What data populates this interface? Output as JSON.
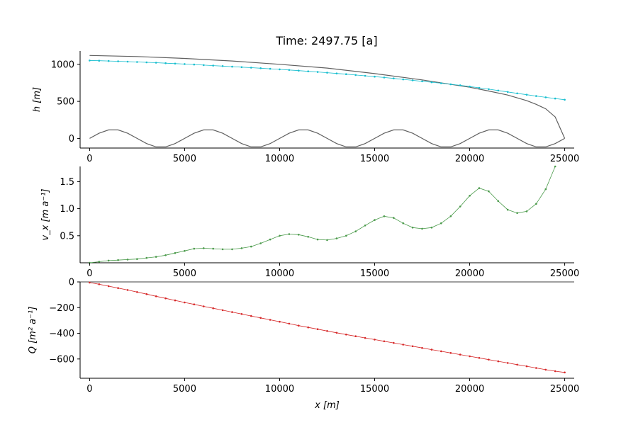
{
  "title": "Time: 2497.75 [a]",
  "chart_data": [
    {
      "type": "line",
      "ylabel": "h [m]",
      "xlim": [
        -500,
        25500
      ],
      "ylim": [
        -130,
        1180
      ],
      "xticks": [
        0,
        5000,
        10000,
        15000,
        20000,
        25000
      ],
      "xtick_labels": [
        "0",
        "5000",
        "10000",
        "15000",
        "20000",
        "25000"
      ],
      "yticks": [
        0,
        500,
        1000
      ],
      "ytick_labels": [
        "0",
        "500",
        "1000"
      ],
      "grid": false,
      "series": [
        {
          "role": "surface",
          "color": "#606060",
          "markers": false,
          "x": [
            0,
            2500,
            5000,
            7500,
            10000,
            12500,
            15000,
            17500,
            20000,
            21000,
            22000,
            23000,
            23500,
            24000,
            24500,
            25000
          ],
          "y": [
            1120,
            1105,
            1080,
            1045,
            1000,
            950,
            875,
            790,
            690,
            640,
            585,
            510,
            460,
            400,
            290,
            0
          ]
        },
        {
          "role": "bed",
          "color": "#606060",
          "markers": false,
          "x": [
            0,
            500,
            1000,
            1500,
            2000,
            2500,
            3000,
            3500,
            4000,
            4500,
            5000,
            5500,
            6000,
            6500,
            7000,
            7500,
            8000,
            8500,
            9000,
            9500,
            10000,
            10500,
            11000,
            11500,
            12000,
            12500,
            13000,
            13500,
            14000,
            14500,
            15000,
            15500,
            16000,
            16500,
            17000,
            17500,
            18000,
            18500,
            19000,
            19500,
            20000,
            20500,
            21000,
            21500,
            22000,
            22500,
            23000,
            23500,
            24000,
            24500,
            25000
          ],
          "y": [
            0,
            70,
            115,
            115,
            70,
            0,
            -70,
            -115,
            -115,
            -70,
            0,
            70,
            115,
            115,
            70,
            0,
            -70,
            -115,
            -115,
            -70,
            0,
            70,
            115,
            115,
            70,
            0,
            -70,
            -115,
            -115,
            -70,
            0,
            70,
            115,
            115,
            70,
            0,
            -70,
            -115,
            -115,
            -70,
            0,
            70,
            115,
            115,
            70,
            0,
            -70,
            -115,
            -115,
            -70,
            0
          ]
        },
        {
          "role": "particles",
          "color": "#17becf",
          "markers": true,
          "x": [
            0,
            500,
            1000,
            1500,
            2000,
            2500,
            3000,
            3500,
            4000,
            4500,
            5000,
            5500,
            6000,
            6500,
            7000,
            7500,
            8000,
            8500,
            9000,
            9500,
            10000,
            10500,
            11000,
            11500,
            12000,
            12500,
            13000,
            13500,
            14000,
            14500,
            15000,
            15500,
            16000,
            16500,
            17000,
            17500,
            18000,
            18500,
            19000,
            19500,
            20000,
            20500,
            21000,
            21500,
            22000,
            22500,
            23000,
            23500,
            24000,
            24500,
            25000
          ],
          "y": [
            1052,
            1049,
            1045,
            1041,
            1037,
            1032,
            1027,
            1022,
            1016,
            1010,
            1004,
            997,
            990,
            983,
            976,
            969,
            962,
            955,
            948,
            940,
            932,
            924,
            915,
            906,
            897,
            887,
            877,
            867,
            856,
            845,
            834,
            822,
            810,
            797,
            784,
            771,
            758,
            745,
            731,
            717,
            700,
            683,
            665,
            646,
            627,
            608,
            590,
            572,
            555,
            538,
            522
          ]
        }
      ]
    },
    {
      "type": "line",
      "ylabel": "v_x [m a⁻¹]",
      "xlim": [
        -500,
        25500
      ],
      "ylim": [
        0,
        1.78
      ],
      "xticks": [
        0,
        5000,
        10000,
        15000,
        20000,
        25000
      ],
      "xtick_labels": [
        "0",
        "5000",
        "10000",
        "15000",
        "20000",
        "25000"
      ],
      "yticks": [
        0.5,
        1.0,
        1.5
      ],
      "ytick_labels": [
        "0.5",
        "1.0",
        "1.5"
      ],
      "grid": false,
      "series": [
        {
          "role": "velocity",
          "color": "#4a9a4a",
          "markers": true,
          "x": [
            0,
            500,
            1000,
            1500,
            2000,
            2500,
            3000,
            3500,
            4000,
            4500,
            5000,
            5500,
            6000,
            6500,
            7000,
            7500,
            8000,
            8500,
            9000,
            9500,
            10000,
            10500,
            11000,
            11500,
            12000,
            12500,
            13000,
            13500,
            14000,
            14500,
            15000,
            15500,
            16000,
            16500,
            17000,
            17500,
            18000,
            18500,
            19000,
            19500,
            20000,
            20500,
            21000,
            21500,
            22000,
            22500,
            23000,
            23500,
            24000,
            24500
          ],
          "y": [
            0.0,
            0.02,
            0.04,
            0.05,
            0.06,
            0.07,
            0.09,
            0.11,
            0.14,
            0.18,
            0.22,
            0.26,
            0.27,
            0.26,
            0.25,
            0.25,
            0.27,
            0.3,
            0.36,
            0.43,
            0.5,
            0.53,
            0.52,
            0.48,
            0.43,
            0.42,
            0.45,
            0.5,
            0.58,
            0.69,
            0.79,
            0.86,
            0.83,
            0.73,
            0.65,
            0.63,
            0.65,
            0.73,
            0.86,
            1.04,
            1.24,
            1.38,
            1.32,
            1.14,
            0.98,
            0.92,
            0.95,
            1.09,
            1.36,
            1.78
          ]
        }
      ]
    },
    {
      "type": "line",
      "ylabel": "Q [m² a⁻¹]",
      "xlabel": "x [m]",
      "xlim": [
        -500,
        25500
      ],
      "ylim": [
        -750,
        0
      ],
      "xticks": [
        0,
        5000,
        10000,
        15000,
        20000,
        25000
      ],
      "xtick_labels": [
        "0",
        "5000",
        "10000",
        "15000",
        "20000",
        "25000"
      ],
      "yticks": [
        0,
        -200,
        -400,
        -600
      ],
      "ytick_labels": [
        "0",
        "−200",
        "−400",
        "−600"
      ],
      "grid": false,
      "series": [
        {
          "role": "flux",
          "color": "#d62728",
          "markers": true,
          "x": [
            0,
            500,
            1000,
            1500,
            2000,
            2500,
            3000,
            3500,
            4000,
            4500,
            5000,
            5500,
            6000,
            6500,
            7000,
            7500,
            8000,
            8500,
            9000,
            9500,
            10000,
            10500,
            11000,
            11500,
            12000,
            12500,
            13000,
            13500,
            14000,
            14500,
            15000,
            15500,
            16000,
            16500,
            17000,
            17500,
            18000,
            18500,
            19000,
            19500,
            20000,
            20500,
            21000,
            21500,
            22000,
            22500,
            23000,
            23500,
            24000,
            24500,
            25000
          ],
          "y": [
            -5,
            -18,
            -33,
            -48,
            -63,
            -79,
            -95,
            -112,
            -128,
            -144,
            -160,
            -175,
            -190,
            -205,
            -220,
            -235,
            -250,
            -265,
            -280,
            -295,
            -310,
            -325,
            -340,
            -354,
            -368,
            -382,
            -396,
            -410,
            -423,
            -436,
            -449,
            -462,
            -475,
            -488,
            -501,
            -514,
            -527,
            -540,
            -553,
            -566,
            -579,
            -592,
            -605,
            -618,
            -631,
            -644,
            -657,
            -670,
            -683,
            -695,
            -705
          ]
        }
      ]
    }
  ]
}
